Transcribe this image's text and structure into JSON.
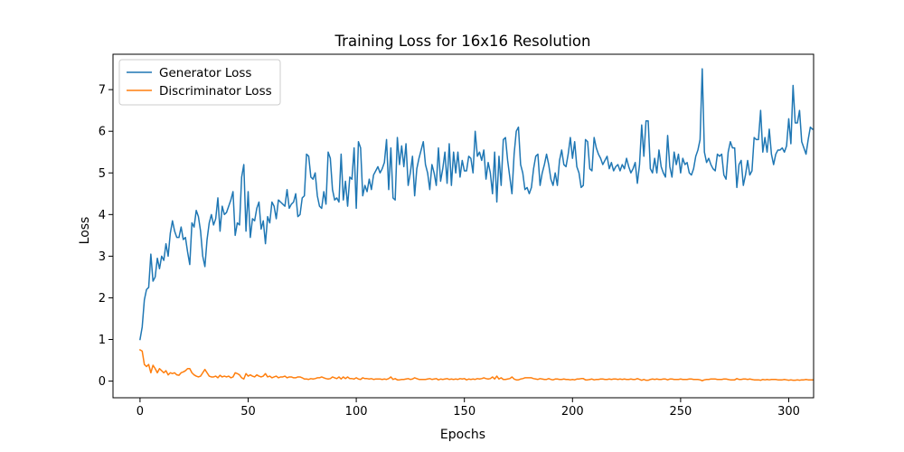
{
  "chart_data": {
    "type": "line",
    "title": "Training Loss for 16x16 Resolution",
    "xlabel": "Epochs",
    "ylabel": "Loss",
    "xlim": [
      -12.5,
      311.5
    ],
    "ylim": [
      -0.4,
      7.85
    ],
    "xticks": [
      "0",
      "50",
      "100",
      "150",
      "200",
      "250",
      "300"
    ],
    "yticks": [
      "0",
      "1",
      "2",
      "3",
      "4",
      "5",
      "6",
      "7"
    ],
    "grid": false,
    "legend_position": "top-left",
    "series": [
      {
        "name": "Generator Loss",
        "color": "#1f77b4",
        "values": [
          1.0,
          1.3,
          1.95,
          2.2,
          2.25,
          3.05,
          2.4,
          2.5,
          2.95,
          2.7,
          3.0,
          2.9,
          3.3,
          3.0,
          3.55,
          3.85,
          3.6,
          3.45,
          3.45,
          3.7,
          3.4,
          3.45,
          3.1,
          2.8,
          3.8,
          3.7,
          4.1,
          3.95,
          3.6,
          3.0,
          2.75,
          3.4,
          3.8,
          4.0,
          3.75,
          3.9,
          4.4,
          3.6,
          4.2,
          4.0,
          4.05,
          4.2,
          4.35,
          4.55,
          3.5,
          3.8,
          3.75,
          4.9,
          5.2,
          3.6,
          4.55,
          3.45,
          3.9,
          3.85,
          4.15,
          4.3,
          3.65,
          3.85,
          3.3,
          3.95,
          3.8,
          4.3,
          4.2,
          3.9,
          4.35,
          4.3,
          4.25,
          4.2,
          4.6,
          4.15,
          4.25,
          4.3,
          4.5,
          3.95,
          4.0,
          4.4,
          4.45,
          5.45,
          5.4,
          4.9,
          4.85,
          5.0,
          4.45,
          4.2,
          4.15,
          4.55,
          4.25,
          5.5,
          5.35,
          4.6,
          4.35,
          4.4,
          4.3,
          5.45,
          4.35,
          4.8,
          4.2,
          4.9,
          4.85,
          5.6,
          4.15,
          5.75,
          5.6,
          4.45,
          4.7,
          4.55,
          4.85,
          4.6,
          4.95,
          5.05,
          5.15,
          5.0,
          5.1,
          5.25,
          5.8,
          4.6,
          5.6,
          4.4,
          4.35,
          5.85,
          5.2,
          5.65,
          5.15,
          5.7,
          4.7,
          5.0,
          5.4,
          4.45,
          5.1,
          5.35,
          5.55,
          5.75,
          5.2,
          5.0,
          4.6,
          5.2,
          5.0,
          4.7,
          5.6,
          4.8,
          5.1,
          5.5,
          4.75,
          5.7,
          4.7,
          5.5,
          5.0,
          5.5,
          4.9,
          5.3,
          5.05,
          5.05,
          5.4,
          5.35,
          5.0,
          6.0,
          5.4,
          5.5,
          5.3,
          5.55,
          4.85,
          5.25,
          5.0,
          4.5,
          5.5,
          4.3,
          5.4,
          4.7,
          5.8,
          5.85,
          5.3,
          4.9,
          4.5,
          5.45,
          6.0,
          6.1,
          5.2,
          5.0,
          4.6,
          4.65,
          4.5,
          4.65,
          5.1,
          5.4,
          5.45,
          4.7,
          5.0,
          5.2,
          5.45,
          5.2,
          4.85,
          4.7,
          5.0,
          4.7,
          5.3,
          5.55,
          5.2,
          5.15,
          5.45,
          5.85,
          5.35,
          5.75,
          5.15,
          5.0,
          4.65,
          4.7,
          5.8,
          5.75,
          5.1,
          5.05,
          5.85,
          5.6,
          5.45,
          5.35,
          5.2,
          5.3,
          5.4,
          5.1,
          5.25,
          5.05,
          5.15,
          5.2,
          5.05,
          5.2,
          5.1,
          5.35,
          5.15,
          5.0,
          5.1,
          5.25,
          4.75,
          5.2,
          6.15,
          5.4,
          6.25,
          6.25,
          5.1,
          5.0,
          5.35,
          5.0,
          5.55,
          5.15,
          5.0,
          4.9,
          5.9,
          5.15,
          4.9,
          5.5,
          5.2,
          5.45,
          5.0,
          5.35,
          5.2,
          5.25,
          5.0,
          4.95,
          5.1,
          5.4,
          5.55,
          5.8,
          7.5,
          5.5,
          5.25,
          5.35,
          5.2,
          5.1,
          5.05,
          5.45,
          5.4,
          5.45,
          4.95,
          4.85,
          5.5,
          5.75,
          5.6,
          5.6,
          4.65,
          5.2,
          5.3,
          4.7,
          4.95,
          5.3,
          4.95,
          5.05,
          5.85,
          5.8,
          5.8,
          6.5,
          5.5,
          5.85,
          5.5,
          6.05,
          5.45,
          5.2,
          5.45,
          5.55,
          5.55,
          5.6,
          5.5,
          5.65,
          6.3,
          5.7,
          7.1,
          6.2,
          6.2,
          6.5,
          5.75,
          5.6,
          5.45,
          5.8,
          6.1,
          6.05
        ]
      },
      {
        "name": "Discriminator Loss",
        "color": "#ff7f0e",
        "values": [
          0.75,
          0.72,
          0.4,
          0.35,
          0.4,
          0.2,
          0.38,
          0.3,
          0.2,
          0.3,
          0.25,
          0.2,
          0.25,
          0.15,
          0.2,
          0.18,
          0.2,
          0.15,
          0.14,
          0.2,
          0.22,
          0.25,
          0.3,
          0.3,
          0.2,
          0.15,
          0.12,
          0.1,
          0.12,
          0.2,
          0.28,
          0.2,
          0.12,
          0.1,
          0.1,
          0.12,
          0.08,
          0.14,
          0.1,
          0.12,
          0.1,
          0.12,
          0.08,
          0.1,
          0.2,
          0.18,
          0.15,
          0.08,
          0.05,
          0.18,
          0.12,
          0.15,
          0.12,
          0.1,
          0.15,
          0.12,
          0.1,
          0.12,
          0.18,
          0.1,
          0.12,
          0.08,
          0.1,
          0.12,
          0.08,
          0.1,
          0.1,
          0.12,
          0.08,
          0.1,
          0.1,
          0.08,
          0.08,
          0.1,
          0.1,
          0.08,
          0.05,
          0.05,
          0.04,
          0.06,
          0.05,
          0.06,
          0.08,
          0.08,
          0.1,
          0.08,
          0.06,
          0.05,
          0.06,
          0.1,
          0.08,
          0.06,
          0.1,
          0.05,
          0.1,
          0.06,
          0.1,
          0.06,
          0.06,
          0.05,
          0.08,
          0.05,
          0.04,
          0.08,
          0.06,
          0.06,
          0.05,
          0.06,
          0.04,
          0.05,
          0.05,
          0.05,
          0.04,
          0.05,
          0.04,
          0.06,
          0.1,
          0.04,
          0.06,
          0.03,
          0.03,
          0.04,
          0.04,
          0.05,
          0.06,
          0.04,
          0.05,
          0.08,
          0.06,
          0.04,
          0.04,
          0.04,
          0.04,
          0.05,
          0.06,
          0.04,
          0.05,
          0.06,
          0.03,
          0.05,
          0.04,
          0.05,
          0.06,
          0.04,
          0.05,
          0.04,
          0.05,
          0.04,
          0.06,
          0.05,
          0.06,
          0.03,
          0.05,
          0.04,
          0.05,
          0.04,
          0.06,
          0.05,
          0.06,
          0.08,
          0.06,
          0.05,
          0.06,
          0.1,
          0.05,
          0.12,
          0.05,
          0.08,
          0.04,
          0.04,
          0.05,
          0.06,
          0.1,
          0.05,
          0.03,
          0.03,
          0.05,
          0.06,
          0.08,
          0.08,
          0.08,
          0.08,
          0.06,
          0.05,
          0.04,
          0.06,
          0.05,
          0.04,
          0.04,
          0.06,
          0.04,
          0.03,
          0.05,
          0.05,
          0.04,
          0.04,
          0.05,
          0.04,
          0.04,
          0.03,
          0.04,
          0.03,
          0.05,
          0.05,
          0.06,
          0.06,
          0.03,
          0.03,
          0.04,
          0.05,
          0.03,
          0.04,
          0.04,
          0.05,
          0.05,
          0.04,
          0.04,
          0.05,
          0.04,
          0.05,
          0.05,
          0.04,
          0.05,
          0.04,
          0.05,
          0.04,
          0.04,
          0.05,
          0.04,
          0.04,
          0.06,
          0.04,
          0.02,
          0.04,
          0.02,
          0.02,
          0.04,
          0.05,
          0.04,
          0.05,
          0.04,
          0.04,
          0.05,
          0.05,
          0.03,
          0.05,
          0.05,
          0.04,
          0.04,
          0.04,
          0.05,
          0.04,
          0.04,
          0.04,
          0.05,
          0.05,
          0.04,
          0.04,
          0.04,
          0.03,
          0.01,
          0.03,
          0.04,
          0.04,
          0.05,
          0.05,
          0.05,
          0.04,
          0.04,
          0.04,
          0.05,
          0.05,
          0.04,
          0.03,
          0.03,
          0.03,
          0.06,
          0.04,
          0.04,
          0.05,
          0.05,
          0.04,
          0.05,
          0.04,
          0.03,
          0.03,
          0.03,
          0.02,
          0.04,
          0.03,
          0.04,
          0.03,
          0.04,
          0.04,
          0.04,
          0.03,
          0.03,
          0.03,
          0.04,
          0.03,
          0.02,
          0.03,
          0.02,
          0.02,
          0.03,
          0.02,
          0.03,
          0.03,
          0.04,
          0.03,
          0.03,
          0.03
        ]
      }
    ]
  }
}
